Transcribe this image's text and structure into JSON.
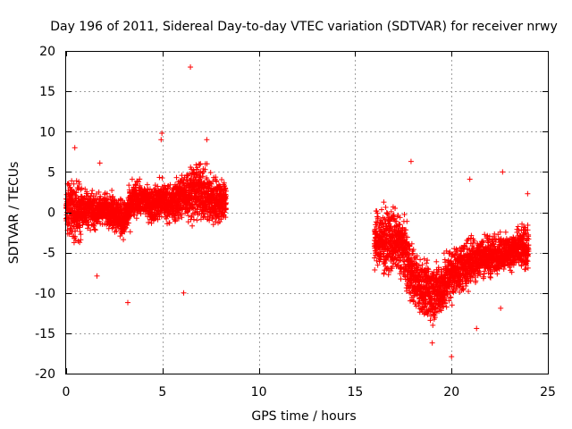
{
  "chart_data": {
    "type": "scatter",
    "title": "Day 196 of 2011, Sidereal Day-to-day VTEC variation (SDTVAR) for receiver nrwy",
    "xlabel": "GPS time / hours",
    "ylabel": "SDTVAR / TECUs",
    "xlim": [
      0,
      25
    ],
    "ylim": [
      -20,
      20
    ],
    "x_ticks": [
      0,
      5,
      10,
      15,
      20,
      25
    ],
    "y_ticks": [
      -20,
      -15,
      -10,
      -5,
      0,
      5,
      10,
      15,
      20
    ],
    "x_tick_labels": [
      "0",
      "5",
      "10",
      "15",
      "20",
      "25"
    ],
    "y_tick_labels": [
      "-20",
      "-15",
      "-10",
      "-5",
      "0",
      "5",
      "10",
      "15",
      "20"
    ],
    "grid": true,
    "marker": "+",
    "color": "#ff0000",
    "series": [
      {
        "name": "SDTVAR",
        "segments": [
          {
            "x_start": 0.0,
            "x_end": 8.3,
            "profile": [
              {
                "x": 0.0,
                "center": 0.5,
                "low": -4,
                "high": 5
              },
              {
                "x": 0.5,
                "center": 0.5,
                "low": -5,
                "high": 5
              },
              {
                "x": 1.0,
                "center": 0.0,
                "low": -3,
                "high": 4
              },
              {
                "x": 1.5,
                "center": 0.0,
                "low": -3,
                "high": 3
              },
              {
                "x": 2.0,
                "center": 0.5,
                "low": -2,
                "high": 3
              },
              {
                "x": 2.5,
                "center": 0.0,
                "low": -3,
                "high": 3
              },
              {
                "x": 3.0,
                "center": -0.5,
                "low": -4,
                "high": 2
              },
              {
                "x": 3.5,
                "center": 1.0,
                "low": -2,
                "high": 5
              },
              {
                "x": 4.0,
                "center": 1.5,
                "low": -1,
                "high": 4
              },
              {
                "x": 4.5,
                "center": 1.0,
                "low": -2,
                "high": 4
              },
              {
                "x": 5.0,
                "center": 1.0,
                "low": -2,
                "high": 5
              },
              {
                "x": 5.5,
                "center": 1.5,
                "low": -2,
                "high": 4
              },
              {
                "x": 6.0,
                "center": 2.0,
                "low": -2,
                "high": 6
              },
              {
                "x": 6.5,
                "center": 2.5,
                "low": -2,
                "high": 7
              },
              {
                "x": 7.0,
                "center": 2.0,
                "low": -2,
                "high": 7
              },
              {
                "x": 7.5,
                "center": 1.0,
                "low": -3,
                "high": 6
              },
              {
                "x": 8.3,
                "center": 0.5,
                "low": -2,
                "high": 5
              }
            ]
          },
          {
            "x_start": 16.0,
            "x_end": 24.0,
            "profile": [
              {
                "x": 16.0,
                "center": -3.0,
                "low": -8,
                "high": 1
              },
              {
                "x": 16.5,
                "center": -3.0,
                "low": -9,
                "high": 2
              },
              {
                "x": 17.0,
                "center": -3.5,
                "low": -9,
                "high": 2
              },
              {
                "x": 17.5,
                "center": -5.0,
                "low": -10,
                "high": 1
              },
              {
                "x": 18.0,
                "center": -8.0,
                "low": -13,
                "high": -3
              },
              {
                "x": 18.5,
                "center": -9.0,
                "low": -14,
                "high": -5
              },
              {
                "x": 19.0,
                "center": -10.0,
                "low": -15,
                "high": -5
              },
              {
                "x": 19.5,
                "center": -9.0,
                "low": -14,
                "high": -5
              },
              {
                "x": 20.0,
                "center": -8.0,
                "low": -12,
                "high": -3
              },
              {
                "x": 20.5,
                "center": -7.5,
                "low": -11,
                "high": -3
              },
              {
                "x": 21.0,
                "center": -6.0,
                "low": -10,
                "high": -2
              },
              {
                "x": 21.5,
                "center": -6.0,
                "low": -9,
                "high": -2
              },
              {
                "x": 22.0,
                "center": -5.5,
                "low": -9,
                "high": -2
              },
              {
                "x": 22.5,
                "center": -5.0,
                "low": -8,
                "high": -2
              },
              {
                "x": 23.0,
                "center": -5.0,
                "low": -8,
                "high": -2
              },
              {
                "x": 23.5,
                "center": -4.5,
                "low": -8,
                "high": -1
              },
              {
                "x": 24.0,
                "center": -4.5,
                "low": -8,
                "high": -1
              }
            ]
          }
        ],
        "outliers": [
          {
            "x": 6.45,
            "y": 18.0
          },
          {
            "x": 4.97,
            "y": 9.8
          },
          {
            "x": 4.93,
            "y": 9.0
          },
          {
            "x": 7.3,
            "y": 9.0
          },
          {
            "x": 1.75,
            "y": 6.1
          },
          {
            "x": 1.6,
            "y": -7.9
          },
          {
            "x": 3.2,
            "y": -11.2
          },
          {
            "x": 6.1,
            "y": -10.0
          },
          {
            "x": 0.45,
            "y": 8.0
          },
          {
            "x": 17.9,
            "y": 6.3
          },
          {
            "x": 20.95,
            "y": 4.1
          },
          {
            "x": 22.65,
            "y": 5.0
          },
          {
            "x": 22.55,
            "y": -11.9
          },
          {
            "x": 20.0,
            "y": -17.9
          },
          {
            "x": 19.0,
            "y": -16.2
          },
          {
            "x": 21.3,
            "y": -14.4
          },
          {
            "x": 23.95,
            "y": 2.3
          }
        ]
      }
    ]
  }
}
